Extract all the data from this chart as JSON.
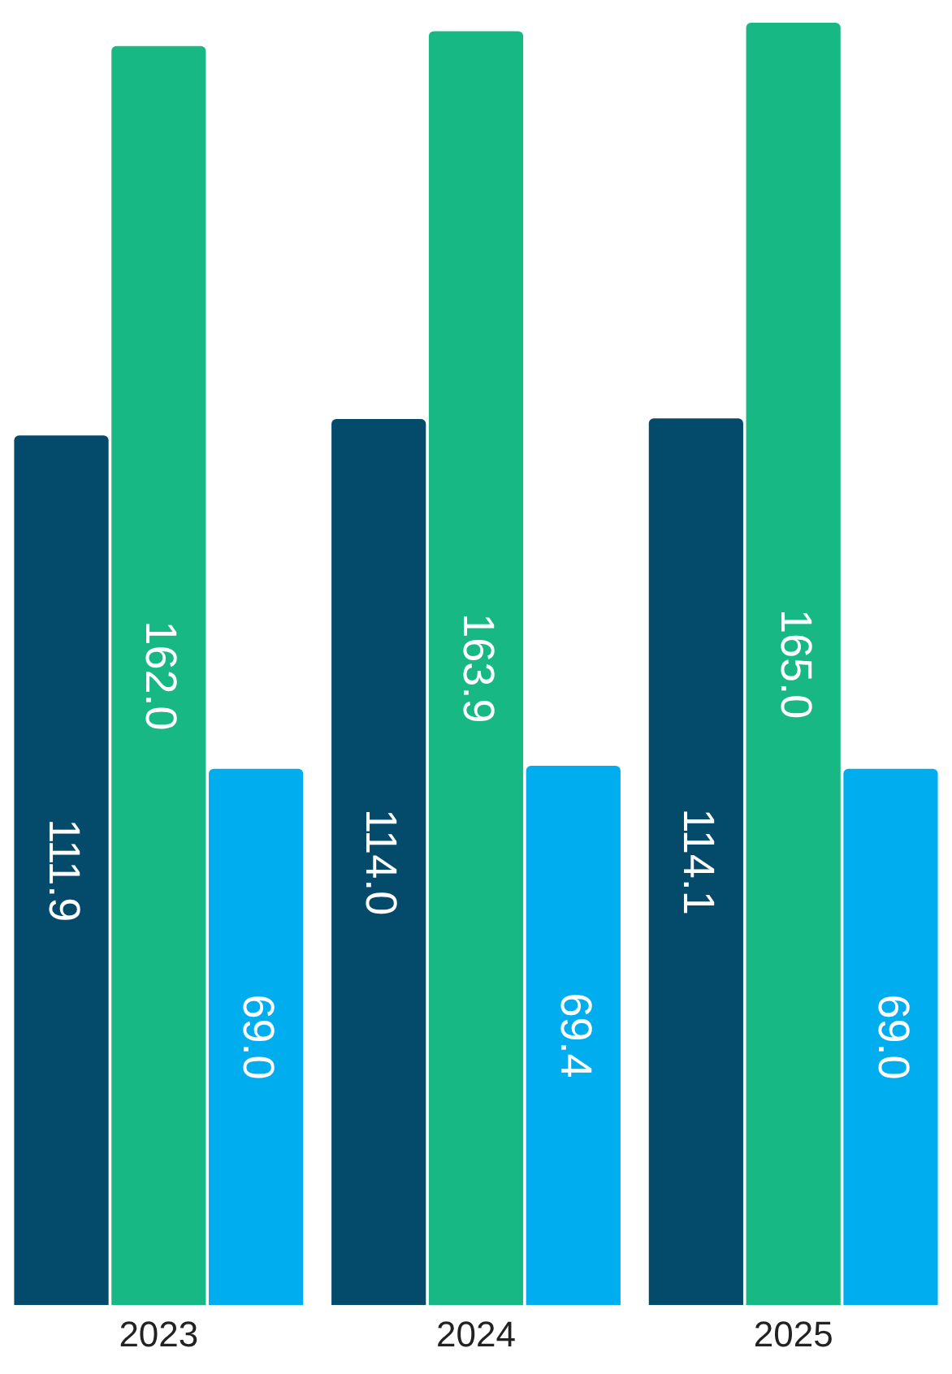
{
  "chart_data": {
    "type": "bar",
    "categories": [
      "2023",
      "2024",
      "2025"
    ],
    "series": [
      {
        "color": "#034a6b",
        "values": [
          111.9,
          114.0,
          114.1
        ],
        "value_labels": [
          "111.9",
          "114.0",
          "114.1"
        ]
      },
      {
        "color": "#17b883",
        "values": [
          162.0,
          163.9,
          165.0
        ],
        "value_labels": [
          "162.0",
          "163.9",
          "165.0"
        ]
      },
      {
        "color": "#00aeef",
        "values": [
          69.0,
          69.4,
          69.0
        ],
        "value_labels": [
          "69.0",
          "69.4",
          "69.0"
        ]
      }
    ],
    "grid": false,
    "legend": false
  }
}
